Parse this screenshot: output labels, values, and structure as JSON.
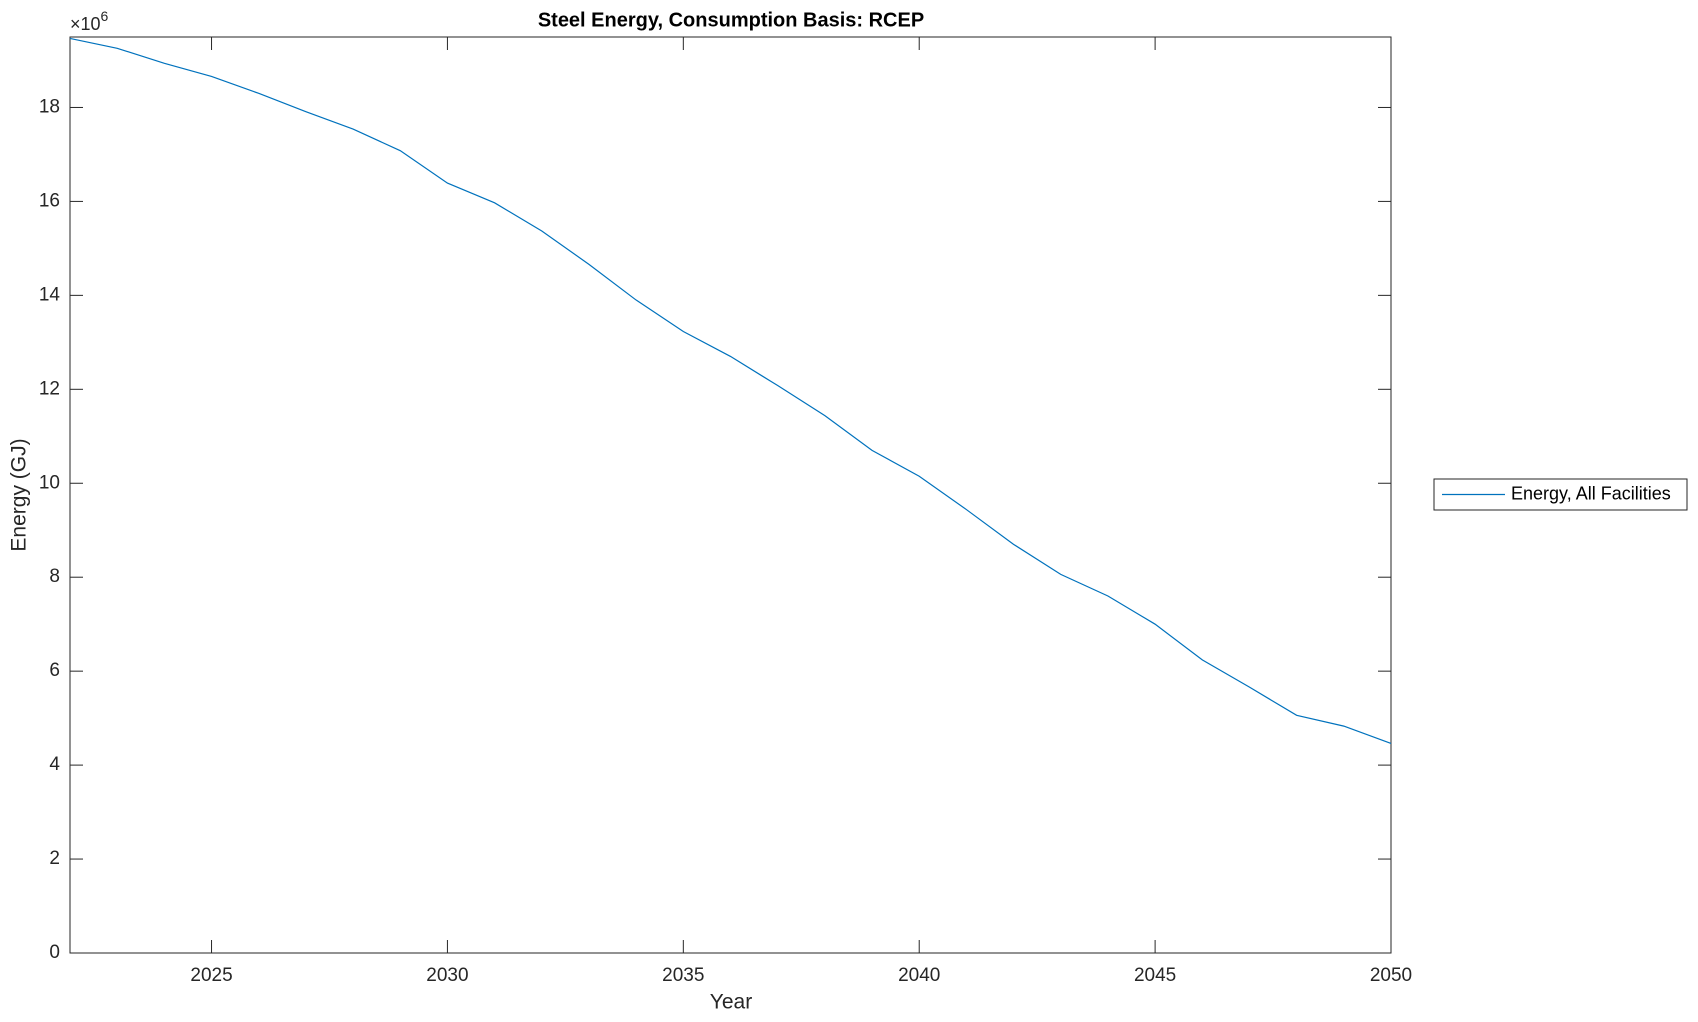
{
  "chart_data": {
    "type": "line",
    "title": "Steel Energy, Consumption Basis: RCEP",
    "x_label": "Year",
    "y_label": "Energy (GJ)",
    "y_multiplier": {
      "base": "×10",
      "exponent": "6"
    },
    "x": [
      2022,
      2023,
      2024,
      2025,
      2026,
      2027,
      2028,
      2029,
      2030,
      2031,
      2032,
      2033,
      2034,
      2035,
      2036,
      2037,
      2038,
      2039,
      2040,
      2041,
      2042,
      2043,
      2044,
      2045,
      2046,
      2047,
      2048,
      2049,
      2050
    ],
    "series": [
      {
        "name": "Energy, All Facilities",
        "color": "#0072bd",
        "values": [
          19.47,
          19.26,
          18.94,
          18.66,
          18.3,
          17.91,
          17.54,
          17.08,
          16.39,
          15.97,
          15.37,
          14.66,
          13.9,
          13.23,
          12.7,
          12.08,
          11.44,
          10.7,
          10.15,
          9.44,
          8.7,
          8.06,
          7.6,
          7.0,
          6.24,
          5.66,
          5.06,
          4.83,
          4.46
        ]
      }
    ],
    "xlim": [
      2022,
      2050
    ],
    "xticks": [
      2025,
      2030,
      2035,
      2040,
      2045,
      2050
    ],
    "ylim": [
      0,
      19.5
    ],
    "yticks": [
      0,
      2,
      4,
      6,
      8,
      10,
      12,
      14,
      16,
      18
    ],
    "grid": false,
    "legend": "outside-right"
  }
}
